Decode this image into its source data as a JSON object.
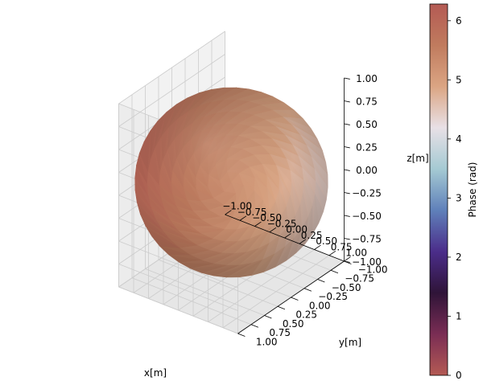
{
  "chart_data": {
    "type": "surface3d",
    "shape": "sphere",
    "radius": 1.0,
    "xlabel": "x[m]",
    "ylabel": "y[m]",
    "zlabel": "z[m]",
    "xlim": [
      -1.0,
      1.0
    ],
    "ylim": [
      -1.0,
      1.0
    ],
    "zlim": [
      -1.0,
      1.0
    ],
    "x_ticks": [
      "−1.00",
      "−0.75",
      "−0.50",
      "−0.25",
      "0.00",
      "0.25",
      "0.50",
      "0.75",
      "1.00"
    ],
    "y_ticks": [
      "−1.00",
      "−0.75",
      "−0.50",
      "−0.25",
      "0.00",
      "0.25",
      "0.50",
      "0.75",
      "1.00"
    ],
    "z_ticks": [
      "−1.00",
      "−0.75",
      "−0.50",
      "−0.25",
      "0.00",
      "0.25",
      "0.50",
      "0.75",
      "1.00"
    ],
    "grid": true,
    "colorbar": {
      "label": "Phase (rad)",
      "range": [
        0,
        6.283
      ],
      "ticks": [
        "0",
        "1",
        "2",
        "3",
        "4",
        "5",
        "6"
      ],
      "colormap": "twilight_shifted",
      "colors": [
        "#b45a54",
        "#7a2d54",
        "#2f1438",
        "#4b2d8a",
        "#5f80ba",
        "#a5cad3",
        "#e8e0e6",
        "#dba583",
        "#c07b5e",
        "#b45a54"
      ]
    }
  }
}
